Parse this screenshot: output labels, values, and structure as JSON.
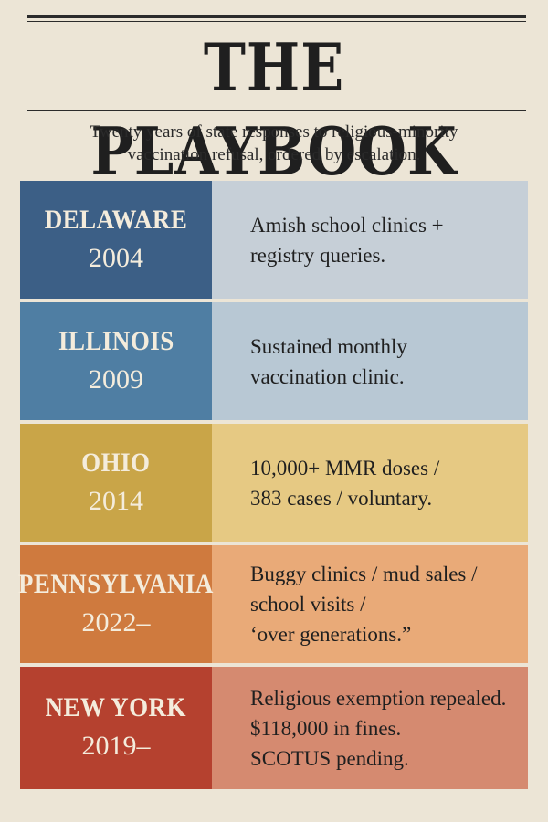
{
  "header": {
    "title": "THE PLAYBOOK",
    "subtitle_line1": "Twenty years of state responses to religious-minority",
    "subtitle_line2": "vaccination refusal, ordered by escalation."
  },
  "rows": [
    {
      "state": "DELAWARE",
      "year": "2004",
      "lines": [
        "Amish school clinics +",
        "registry queries."
      ]
    },
    {
      "state": "ILLINOIS",
      "year": "2009",
      "lines": [
        "Sustained monthly",
        "vaccination clinic."
      ]
    },
    {
      "state": "OHIO",
      "year": "2014",
      "lines": [
        "10,000+ MMR doses /",
        "383 cases / voluntary."
      ]
    },
    {
      "state": "PENNSYLVANIA",
      "year": "2022–",
      "lines": [
        "Buggy clinics / mud sales /",
        "school visits /",
        "‘over generations.”"
      ]
    },
    {
      "state": "NEW YORK",
      "year": "2019–",
      "lines": [
        "Religious exemption repealed.",
        "$118,000 in fines.",
        "SCOTUS pending."
      ]
    }
  ],
  "colors": {
    "background": "#ece5d6",
    "delaware": "#3c5f86",
    "illinois": "#4f7ea3",
    "ohio": "#c9a548",
    "pennsylvania": "#cf7a3e",
    "new_york": "#b5412f"
  }
}
